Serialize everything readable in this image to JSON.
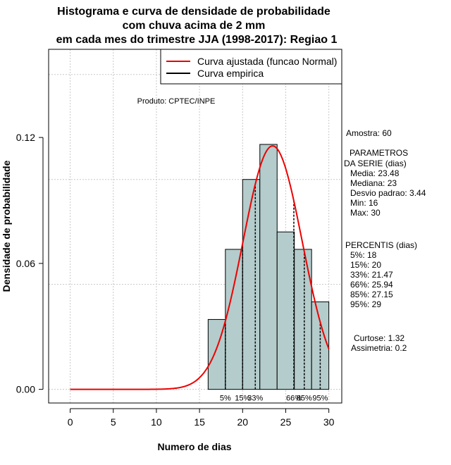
{
  "chart_data": {
    "type": "bar",
    "title_lines": [
      "Histograma e curva de densidade de probabilidade",
      "com chuva acima de 2 mm",
      "em cada mes do trimestre JJA (1998-2017): Regiao 1"
    ],
    "xlabel": "Numero de dias",
    "ylabel": "Densidade de probabilidade",
    "xlim": [
      -2.5,
      31.5
    ],
    "ylim": [
      -0.0065,
      0.162
    ],
    "x_ticks": [
      0,
      5,
      10,
      15,
      20,
      25,
      30
    ],
    "y_ticks": [
      0.0,
      0.06,
      0.12
    ],
    "y_tick_labels": [
      "0.00",
      "0.06",
      "0.12"
    ],
    "grid_x": [
      0,
      5,
      10,
      15,
      20,
      25,
      30
    ],
    "grid_y": [
      0.0,
      0.05,
      0.1,
      0.15
    ],
    "bar_color": "#b4cccc",
    "curve_color": "#ee0000",
    "bins": [
      {
        "start": 16,
        "end": 18,
        "density": 0.0333
      },
      {
        "start": 18,
        "end": 20,
        "density": 0.0667
      },
      {
        "start": 20,
        "end": 22,
        "density": 0.1
      },
      {
        "start": 22,
        "end": 24,
        "density": 0.1167
      },
      {
        "start": 24,
        "end": 26,
        "density": 0.075
      },
      {
        "start": 26,
        "end": 28,
        "density": 0.0667
      },
      {
        "start": 28,
        "end": 30,
        "density": 0.0417
      }
    ],
    "normal_curve": {
      "mean": 23.48,
      "sd": 3.44,
      "x_from": 0,
      "x_to": 30
    },
    "percentile_lines": [
      {
        "label": "5%",
        "x": 18
      },
      {
        "label": "15%",
        "x": 20
      },
      {
        "label": "33%",
        "x": 21.47
      },
      {
        "label": "66%",
        "x": 25.94
      },
      {
        "label": "85%",
        "x": 27.15
      },
      {
        "label": "95%",
        "x": 29
      }
    ],
    "legend": {
      "position": "top-right",
      "entries": [
        {
          "label": "Curva ajustada (funcao Normal)",
          "color": "#ee0000"
        },
        {
          "label": "Curva empirica",
          "color": "#000000"
        }
      ]
    },
    "annotation": "Produto: CPTEC/INPE"
  },
  "side_panel": {
    "amostra": "Amostra: 60",
    "param_header_1": "PARAMETROS",
    "param_header_2": "DA SERIE (dias)",
    "params": [
      "Media: 23.48",
      "Mediana: 23",
      "Desvio padrao: 3.44",
      "Min: 16",
      "Max: 30"
    ],
    "percentis_header": "PERCENTIS (dias)",
    "percentis": [
      "5%: 18",
      "15%: 20",
      "33%: 21.47",
      "66%: 25.94",
      "85%: 27.15",
      "95%: 29"
    ],
    "curtose": "Curtose: 1.32",
    "assimetria": "Assimetria: 0.2"
  }
}
